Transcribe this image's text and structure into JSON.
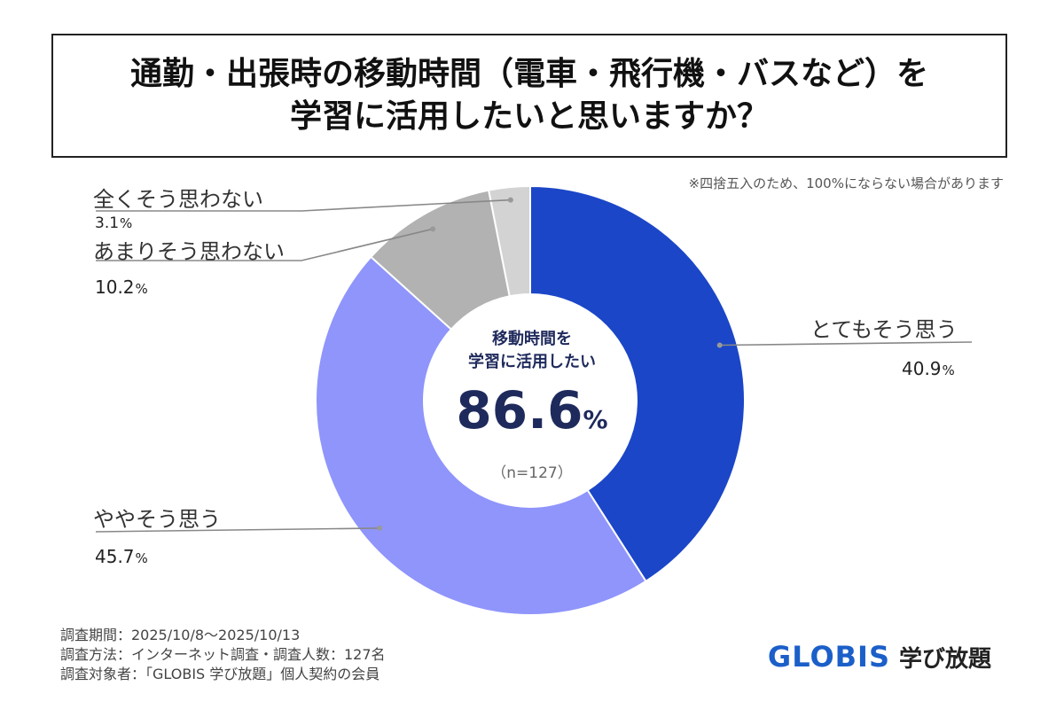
{
  "title": {
    "line1": "通勤・出張時の移動時間（電車・飛行機・バスなど）を",
    "line2": "学習に活用したいと思いますか？"
  },
  "note": "※四捨五入のため、100%にならない場合があります",
  "center": {
    "caption_line1": "移動時間を",
    "caption_line2": "学習に活用したい",
    "value": "86.6",
    "unit": "%",
    "n": "（n=127）"
  },
  "chart_data": {
    "type": "pie",
    "title": "通勤・出張時の移動時間（電車・飛行機・バスなど）を学習に活用したいと思いますか？",
    "donut": true,
    "categories": [
      "とてもそう思う",
      "ややそう思う",
      "あまりそう思わない",
      "全くそう思わない"
    ],
    "values": [
      40.9,
      45.7,
      10.2,
      3.1
    ],
    "value_labels": [
      "40.9",
      "45.7",
      "10.2",
      "3.1"
    ],
    "unit": "%",
    "colors": [
      "#1b46c7",
      "#8f95fb",
      "#b2b2b2",
      "#d3d3d3"
    ]
  },
  "footer": {
    "line1": "調査期間：2025/10/8〜2025/10/13",
    "line2": "調査方法：インターネット調査・調査人数：127名",
    "line3": "調査対象者：「GLOBIS 学び放題」個人契約の会員"
  },
  "logo": {
    "main": "GLOBIS",
    "sub": "学び放題",
    "main_color": "#1b5fc9",
    "sub_color": "#222222"
  }
}
